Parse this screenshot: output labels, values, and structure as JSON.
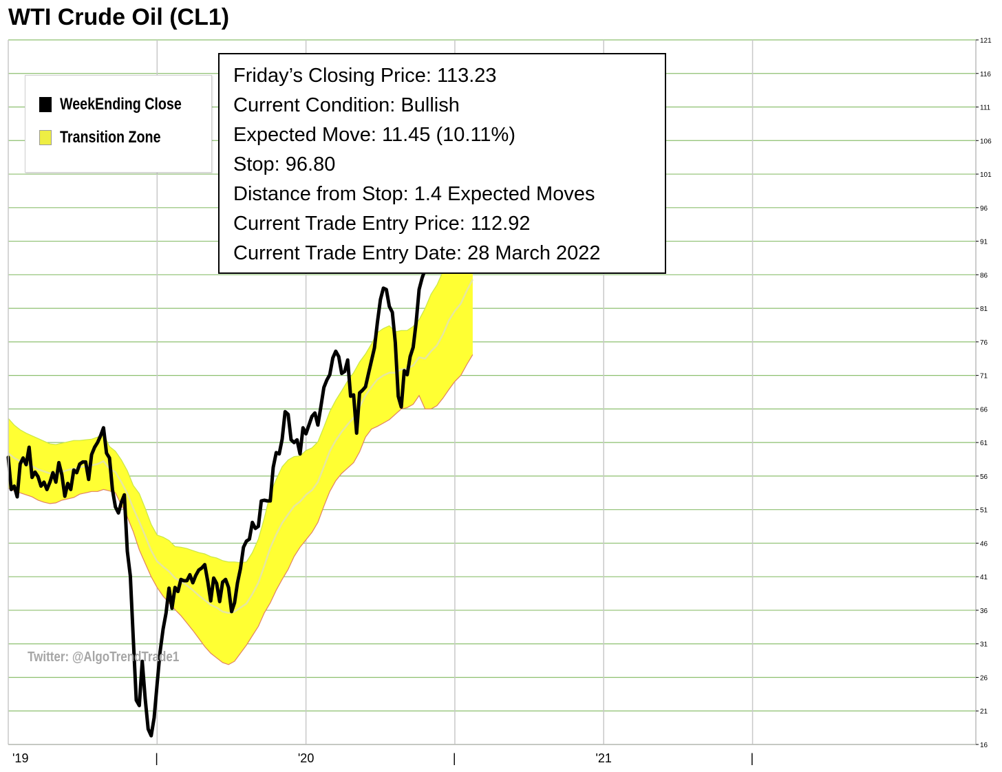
{
  "title": "WTI Crude Oil (CL1)",
  "legend": {
    "items": [
      {
        "label": "WeekEnding Close",
        "color": "#000000"
      },
      {
        "label": "Transition Zone",
        "color": "#f4f03a"
      }
    ]
  },
  "info_box": {
    "lines": [
      "Friday’s Closing Price: 113.23",
      "Current Condition: Bullish",
      "Expected Move: 11.45 (10.11%)",
      "Stop: 96.80",
      "Distance from Stop: 1.4 Expected Moves",
      "Current Trade Entry Price: 112.92",
      "Current Trade Entry Date: 28 March 2022"
    ]
  },
  "watermark": "Twitter: @AlgoTrendTrade1",
  "colors": {
    "price_line": "#000000",
    "zone_fill": "#ffff33",
    "zone_edge_top": "#c8e646",
    "zone_edge_bottom": "#e08060",
    "midline": "#e6e6a0",
    "grid_horizontal": "#8cbf6e",
    "grid_vertical": "#c8c8c8"
  },
  "chart_data": {
    "type": "line",
    "title": "WTI Crude Oil (CL1)",
    "xlabel": "",
    "ylabel": "",
    "ylim": [
      16,
      121
    ],
    "x_range": [
      2019.0,
      2022.25
    ],
    "grid": true,
    "legend_position": "top-left",
    "y_ticks": [
      16,
      21,
      26,
      31,
      36,
      41,
      46,
      51,
      56,
      61,
      66,
      71,
      76,
      81,
      86,
      91,
      96,
      101,
      106,
      111,
      116,
      121
    ],
    "x_ticks": [
      {
        "x": 2019.0,
        "label": "'19"
      },
      {
        "x": 2019.5,
        "label": "|"
      },
      {
        "x": 2020.0,
        "label": "'20"
      },
      {
        "x": 2020.5,
        "label": "|"
      },
      {
        "x": 2021.0,
        "label": "'21"
      },
      {
        "x": 2021.5,
        "label": "|"
      }
    ],
    "series": [
      {
        "name": "WeekEnding Close",
        "style": "line",
        "points": [
          [
            2019.0,
            58.8
          ],
          [
            2019.01,
            54.0
          ],
          [
            2019.02,
            54.5
          ],
          [
            2019.03,
            52.9
          ],
          [
            2019.04,
            57.8
          ],
          [
            2019.05,
            58.7
          ],
          [
            2019.06,
            57.7
          ],
          [
            2019.07,
            60.3
          ],
          [
            2019.08,
            55.8
          ],
          [
            2019.09,
            56.6
          ],
          [
            2019.1,
            55.9
          ],
          [
            2019.11,
            54.5
          ],
          [
            2019.12,
            55.1
          ],
          [
            2019.13,
            54.0
          ],
          [
            2019.14,
            55.1
          ],
          [
            2019.15,
            56.5
          ],
          [
            2019.16,
            55.1
          ],
          [
            2019.17,
            58.0
          ],
          [
            2019.18,
            56.2
          ],
          [
            2019.19,
            53.0
          ],
          [
            2019.2,
            54.9
          ],
          [
            2019.21,
            54.0
          ],
          [
            2019.22,
            56.9
          ],
          [
            2019.23,
            56.5
          ],
          [
            2019.24,
            57.8
          ],
          [
            2019.25,
            58.1
          ],
          [
            2019.26,
            58.1
          ],
          [
            2019.27,
            55.5
          ],
          [
            2019.28,
            59.2
          ],
          [
            2019.29,
            60.3
          ],
          [
            2019.3,
            61.0
          ],
          [
            2019.31,
            62.0
          ],
          [
            2019.32,
            63.2
          ],
          [
            2019.33,
            59.4
          ],
          [
            2019.34,
            58.7
          ],
          [
            2019.35,
            54.0
          ],
          [
            2019.36,
            51.4
          ],
          [
            2019.37,
            50.5
          ],
          [
            2019.38,
            52.1
          ],
          [
            2019.39,
            53.2
          ],
          [
            2019.4,
            44.8
          ],
          [
            2019.41,
            41.1
          ],
          [
            2019.42,
            31.7
          ],
          [
            2019.43,
            22.6
          ],
          [
            2019.44,
            21.8
          ],
          [
            2019.45,
            28.4
          ],
          [
            2019.46,
            22.8
          ],
          [
            2019.47,
            18.3
          ],
          [
            2019.48,
            17.3
          ],
          [
            2019.49,
            20.0
          ],
          [
            2019.5,
            25.0
          ],
          [
            2019.51,
            29.8
          ],
          [
            2019.52,
            33.2
          ],
          [
            2019.53,
            35.6
          ],
          [
            2019.54,
            39.3
          ],
          [
            2019.55,
            36.3
          ],
          [
            2019.56,
            39.4
          ],
          [
            2019.57,
            38.8
          ],
          [
            2019.58,
            40.6
          ],
          [
            2019.59,
            40.4
          ],
          [
            2019.6,
            40.4
          ],
          [
            2019.61,
            41.3
          ],
          [
            2019.62,
            40.1
          ],
          [
            2019.63,
            41.2
          ],
          [
            2019.64,
            42.0
          ],
          [
            2019.65,
            42.3
          ],
          [
            2019.66,
            42.8
          ],
          [
            2019.67,
            40.3
          ],
          [
            2019.68,
            37.4
          ],
          [
            2019.69,
            40.8
          ],
          [
            2019.7,
            40.0
          ],
          [
            2019.71,
            37.3
          ],
          [
            2019.72,
            40.2
          ],
          [
            2019.73,
            40.6
          ],
          [
            2019.74,
            39.4
          ],
          [
            2019.75,
            35.8
          ],
          [
            2019.76,
            37.1
          ],
          [
            2019.77,
            40.1
          ],
          [
            2019.78,
            42.2
          ],
          [
            2019.79,
            45.4
          ],
          [
            2019.8,
            46.3
          ],
          [
            2019.81,
            46.6
          ],
          [
            2019.82,
            49.1
          ],
          [
            2019.83,
            48.2
          ],
          [
            2019.84,
            48.5
          ],
          [
            2019.85,
            52.3
          ],
          [
            2019.86,
            52.4
          ],
          [
            2019.87,
            52.3
          ],
          [
            2019.88,
            52.3
          ],
          [
            2019.89,
            57.3
          ],
          [
            2019.9,
            59.5
          ],
          [
            2019.91,
            59.3
          ],
          [
            2019.92,
            61.5
          ],
          [
            2019.93,
            65.6
          ],
          [
            2019.94,
            65.2
          ],
          [
            2019.95,
            61.4
          ],
          [
            2019.96,
            61.0
          ],
          [
            2019.97,
            61.4
          ],
          [
            2019.98,
            59.3
          ],
          [
            2019.99,
            63.2
          ],
          [
            2020.0,
            62.3
          ],
          [
            2020.01,
            63.6
          ],
          [
            2020.02,
            64.9
          ],
          [
            2020.03,
            65.4
          ],
          [
            2020.04,
            63.6
          ],
          [
            2020.05,
            66.3
          ],
          [
            2020.06,
            69.2
          ],
          [
            2020.07,
            70.3
          ],
          [
            2020.08,
            71.1
          ],
          [
            2020.09,
            73.6
          ],
          [
            2020.1,
            74.6
          ],
          [
            2020.11,
            73.8
          ],
          [
            2020.12,
            71.3
          ],
          [
            2020.13,
            71.6
          ],
          [
            2020.14,
            73.3
          ],
          [
            2020.15,
            67.9
          ],
          [
            2020.16,
            68.1
          ],
          [
            2020.17,
            62.4
          ],
          [
            2020.18,
            68.4
          ],
          [
            2020.19,
            68.8
          ],
          [
            2020.2,
            69.3
          ],
          [
            2020.21,
            71.3
          ],
          [
            2020.22,
            73.2
          ],
          [
            2020.23,
            75.1
          ],
          [
            2020.24,
            78.9
          ],
          [
            2020.25,
            82.3
          ],
          [
            2020.26,
            84.0
          ],
          [
            2020.27,
            83.8
          ],
          [
            2020.28,
            81.3
          ],
          [
            2020.29,
            80.4
          ],
          [
            2020.3,
            75.9
          ],
          [
            2020.31,
            67.9
          ],
          [
            2020.32,
            66.3
          ],
          [
            2020.33,
            71.7
          ],
          [
            2020.34,
            71.1
          ],
          [
            2020.35,
            73.8
          ],
          [
            2020.36,
            75.2
          ],
          [
            2020.37,
            78.9
          ],
          [
            2020.38,
            83.8
          ],
          [
            2020.39,
            85.5
          ],
          [
            2020.4,
            86.8
          ],
          [
            2020.41,
            92.3
          ],
          [
            2020.42,
            93.0
          ],
          [
            2020.43,
            91.3
          ],
          [
            2020.44,
            91.6
          ],
          [
            2020.45,
            115.7
          ],
          [
            2020.46,
            109.5
          ],
          [
            2020.47,
            104.5
          ],
          [
            2020.48,
            114.0
          ],
          [
            2020.49,
            99.1
          ],
          [
            2020.5,
            98.3
          ],
          [
            2020.51,
            106.9
          ],
          [
            2020.52,
            102.1
          ],
          [
            2020.53,
            104.7
          ],
          [
            2020.54,
            109.9
          ],
          [
            2020.55,
            110.7
          ],
          [
            2020.56,
            113.2
          ]
        ]
      },
      {
        "name": "Transition Zone",
        "style": "band",
        "x": [
          2019.0,
          2019.02,
          2019.04,
          2019.06,
          2019.08,
          2019.1,
          2019.12,
          2019.14,
          2019.16,
          2019.18,
          2019.2,
          2019.22,
          2019.24,
          2019.26,
          2019.28,
          2019.3,
          2019.32,
          2019.34,
          2019.36,
          2019.38,
          2019.4,
          2019.42,
          2019.44,
          2019.46,
          2019.48,
          2019.5,
          2019.52,
          2019.54,
          2019.56,
          2019.58,
          2019.6,
          2019.62,
          2019.64,
          2019.66,
          2019.68,
          2019.7,
          2019.72,
          2019.74,
          2019.76,
          2019.78,
          2019.8,
          2019.82,
          2019.84,
          2019.86,
          2019.88,
          2019.9,
          2019.92,
          2019.94,
          2019.96,
          2019.98,
          2020.0,
          2020.02,
          2020.04,
          2020.06,
          2020.08,
          2020.1,
          2020.12,
          2020.14,
          2020.16,
          2020.18,
          2020.2,
          2020.22,
          2020.24,
          2020.26,
          2020.28,
          2020.3,
          2020.32,
          2020.34,
          2020.36,
          2020.38,
          2020.4,
          2020.42,
          2020.44,
          2020.46,
          2020.48,
          2020.5,
          2020.52,
          2020.54,
          2020.56
        ],
        "upper": [
          64.6,
          63.6,
          62.9,
          62.4,
          62.0,
          61.6,
          61.2,
          60.8,
          60.7,
          60.9,
          61.1,
          61.3,
          61.3,
          61.4,
          61.5,
          61.8,
          62.3,
          60.4,
          59.7,
          58.4,
          56.8,
          54.6,
          53.4,
          51.2,
          48.8,
          47.2,
          46.9,
          46.4,
          45.5,
          45.4,
          45.2,
          44.9,
          44.6,
          44.4,
          44.0,
          43.8,
          43.4,
          43.2,
          43.2,
          43.1,
          43.2,
          44.6,
          46.6,
          49.7,
          53.4,
          55.5,
          57.4,
          58.4,
          58.9,
          59.0,
          59.8,
          60.2,
          61.1,
          63.3,
          65.6,
          67.3,
          68.7,
          70.2,
          71.4,
          73.0,
          74.2,
          75.7,
          77.4,
          78.0,
          78.4,
          77.5,
          77.7,
          77.7,
          78.3,
          79.3,
          81.0,
          83.1,
          84.5,
          86.5,
          89.5,
          91.0,
          92.4,
          94.5,
          96.4
        ],
        "lower": [
          54.2,
          53.8,
          53.5,
          53.2,
          52.9,
          52.4,
          52.1,
          51.9,
          52.0,
          52.4,
          52.6,
          52.8,
          53.3,
          53.5,
          53.7,
          53.7,
          54.0,
          53.8,
          53.5,
          51.7,
          49.9,
          47.7,
          45.0,
          43.0,
          41.0,
          39.4,
          38.1,
          37.1,
          36.1,
          35.2,
          34.1,
          33.0,
          31.8,
          30.6,
          29.6,
          28.9,
          28.2,
          27.9,
          28.4,
          29.6,
          30.8,
          32.2,
          33.6,
          35.6,
          37.1,
          39.0,
          40.6,
          42.1,
          44.0,
          45.4,
          46.5,
          47.6,
          49.1,
          51.5,
          53.7,
          55.3,
          56.4,
          57.2,
          58.0,
          59.6,
          61.8,
          63.0,
          63.4,
          63.9,
          64.4,
          65.2,
          66.0,
          66.2,
          66.7,
          68.0,
          66.0,
          66.0,
          66.5,
          67.6,
          68.9,
          70.1,
          71.0,
          72.6,
          74.1
        ],
        "mid": [
          59.4,
          58.7,
          58.2,
          57.8,
          57.5,
          57.0,
          56.7,
          56.4,
          56.4,
          56.6,
          56.9,
          57.1,
          57.3,
          57.5,
          57.6,
          57.8,
          58.2,
          57.1,
          56.6,
          55.1,
          53.4,
          51.2,
          49.2,
          47.1,
          44.9,
          43.3,
          42.5,
          41.8,
          40.8,
          40.3,
          39.7,
          39.0,
          38.2,
          37.5,
          36.8,
          36.4,
          35.8,
          35.6,
          35.8,
          36.4,
          37.0,
          38.4,
          40.1,
          42.6,
          45.3,
          47.3,
          49.0,
          50.3,
          51.5,
          52.2,
          53.2,
          53.9,
          55.1,
          57.4,
          59.7,
          61.3,
          62.6,
          63.7,
          64.7,
          66.3,
          68.0,
          69.3,
          70.4,
          71.0,
          71.4,
          71.4,
          71.9,
          72.0,
          72.5,
          73.7,
          73.5,
          74.6,
          75.5,
          77.1,
          79.2,
          80.6,
          81.7,
          83.6,
          85.3
        ]
      }
    ]
  }
}
